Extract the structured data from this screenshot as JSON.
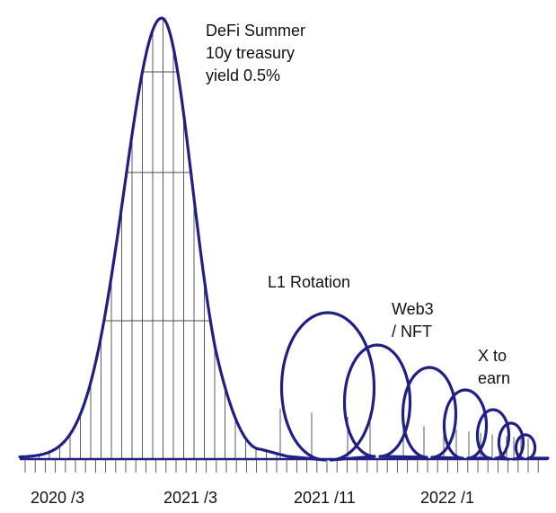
{
  "colors": {
    "track": "#1f1f85",
    "support": "#4a4a4a",
    "text": "#111111",
    "background": "#ffffff"
  },
  "annotations": {
    "defi": {
      "line1": "DeFi Summer",
      "line2": "10y treasury",
      "line3": "yield  0.5%"
    },
    "l1": "L1 Rotation",
    "web3": {
      "line1": "Web3",
      "line2": "/ NFT"
    },
    "x2earn": {
      "line1": "X to",
      "line2": "earn"
    }
  },
  "timeline": {
    "labels": [
      "2020 /3",
      "2021 /3",
      "2021 /11",
      "2022 /1"
    ]
  }
}
